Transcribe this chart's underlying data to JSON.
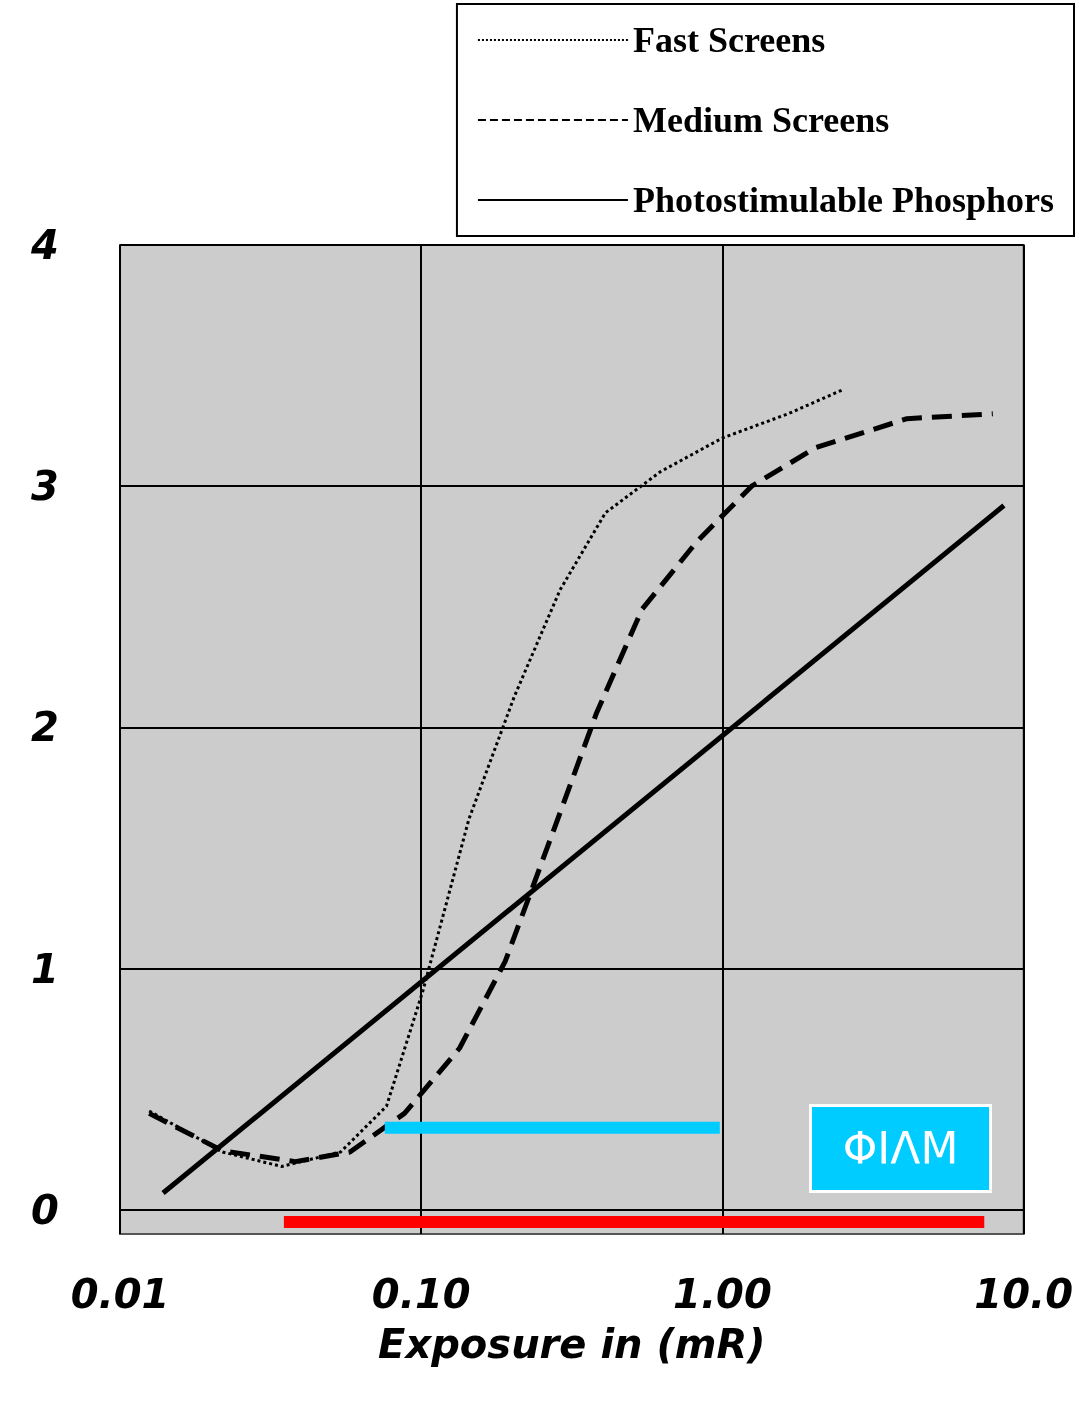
{
  "chart_data": {
    "type": "line",
    "xlabel": "Exposure in (mR)",
    "log": "x",
    "xlim": [
      0.01,
      10
    ],
    "xticks": [
      {
        "value": 0.01,
        "label": "0.01"
      },
      {
        "value": 0.1,
        "label": "0.10"
      },
      {
        "value": 1,
        "label": "1.00"
      },
      {
        "value": 10,
        "label": "10.0"
      }
    ],
    "ylim": [
      -0.1,
      4
    ],
    "yticks": [
      0,
      1,
      2,
      3,
      4
    ],
    "grid": true,
    "legend": "top right",
    "marker": "none",
    "series": [
      {
        "name": "Fast Screens",
        "color": "#000000",
        "line_style": "dotted",
        "x": [
          0.0125,
          0.0219,
          0.0344,
          0.054,
          0.0767,
          0.1014,
          0.144,
          0.204,
          0.289,
          0.409,
          0.622,
          1.0,
          1.65,
          2.51
        ],
        "values": [
          0.41,
          0.24,
          0.18,
          0.24,
          0.43,
          0.91,
          1.62,
          2.13,
          2.57,
          2.89,
          3.06,
          3.2,
          3.3,
          3.4
        ]
      },
      {
        "name": "Medium Screens",
        "color": "#000000",
        "line_style": "dashed",
        "x": [
          0.0125,
          0.0219,
          0.0382,
          0.058,
          0.088,
          0.134,
          0.19,
          0.269,
          0.382,
          0.541,
          0.822,
          1.25,
          2.04,
          4.1,
          7.9
        ],
        "values": [
          0.4,
          0.245,
          0.2,
          0.24,
          0.4,
          0.67,
          1.03,
          1.54,
          2.06,
          2.49,
          2.77,
          3.0,
          3.16,
          3.28,
          3.3
        ]
      },
      {
        "name": "Photostimulable Phosphors",
        "color": "#000000",
        "line_style": "solid",
        "x": [
          0.0139,
          8.6
        ],
        "values": [
          0.07,
          2.92
        ]
      },
      {
        "color": "#00ccff",
        "line_style": "solid",
        "x": [
          0.0757,
          0.98
        ],
        "values": [
          0.34,
          0.34
        ]
      },
      {
        "color": "#ff0000",
        "line_style": "solid",
        "x": [
          0.035,
          7.4
        ],
        "values": [
          -0.05,
          -0.05
        ]
      }
    ],
    "annotations": [
      "ΦΙΛΜ"
    ]
  }
}
